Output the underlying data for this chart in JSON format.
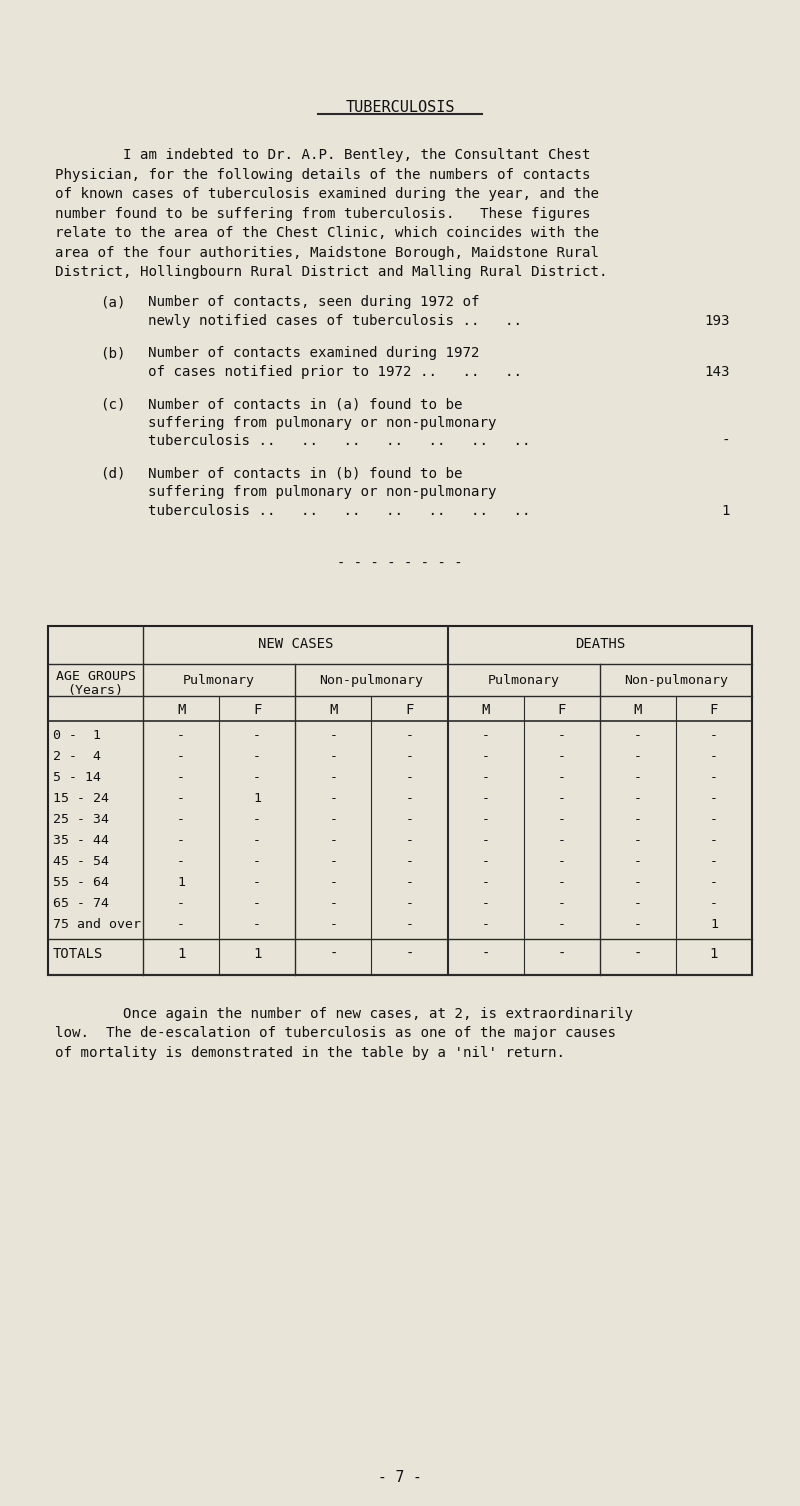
{
  "bg_color": "#e8e4d8",
  "title": "TUBERCULOSIS",
  "intro_line1": "        I am indebted to Dr. A.P. Bentley, the Consultant Chest",
  "intro_lines": [
    "        I am indebted to Dr. A.P. Bentley, the Consultant Chest",
    "Physician, for the following details of the numbers of contacts",
    "of known cases of tuberculosis examined during the year, and the",
    "number found to be suffering from tuberculosis.   These figures",
    "relate to the area of the Chest Clinic, which coincides with the",
    "area of the four authorities, Maidstone Borough, Maidstone Rural",
    "District, Hollingbourn Rural District and Malling Rural District."
  ],
  "items": [
    {
      "label": "(a)",
      "lines": [
        "Number of contacts, seen during 1972 of",
        "newly notified cases of tuberculosis ..   .."
      ],
      "value": "193"
    },
    {
      "label": "(b)",
      "lines": [
        "Number of contacts examined during 1972",
        "of cases notified prior to 1972 ..   ..   .."
      ],
      "value": "143"
    },
    {
      "label": "(c)",
      "lines": [
        "Number of contacts in (a) found to be",
        "suffering from pulmonary or non-pulmonary",
        "tuberculosis ..   ..   ..   ..   ..   ..   .."
      ],
      "value": "-"
    },
    {
      "label": "(d)",
      "lines": [
        "Number of contacts in (b) found to be",
        "suffering from pulmonary or non-pulmonary",
        "tuberculosis ..   ..   ..   ..   ..   ..   .."
      ],
      "value": "1"
    }
  ],
  "separator": "- - - - - - - -",
  "age_groups": [
    "0 -  1",
    "2 -  4",
    "5 - 14",
    "15 - 24",
    "25 - 34",
    "35 - 44",
    "45 - 54",
    "55 - 64",
    "65 - 74",
    "75 and over"
  ],
  "table_data": {
    "nc_pul_M": [
      "-",
      "-",
      "-",
      "-",
      "-",
      "-",
      "-",
      "1",
      "-",
      "-"
    ],
    "nc_pul_F": [
      "-",
      "-",
      "-",
      "1",
      "-",
      "-",
      "-",
      "-",
      "-",
      "-"
    ],
    "nc_np_M": [
      "-",
      "-",
      "-",
      "-",
      "-",
      "-",
      "-",
      "-",
      "-",
      "-"
    ],
    "nc_np_F": [
      "-",
      "-",
      "-",
      "-",
      "-",
      "-",
      "-",
      "-",
      "-",
      "-"
    ],
    "d_pul_M": [
      "-",
      "-",
      "-",
      "-",
      "-",
      "-",
      "-",
      "-",
      "-",
      "-"
    ],
    "d_pul_F": [
      "-",
      "-",
      "-",
      "-",
      "-",
      "-",
      "-",
      "-",
      "-",
      "-"
    ],
    "d_np_M": [
      "-",
      "-",
      "-",
      "-",
      "-",
      "-",
      "-",
      "-",
      "-",
      "-"
    ],
    "d_np_F": [
      "-",
      "-",
      "-",
      "-",
      "-",
      "-",
      "-",
      "-",
      "-",
      "1"
    ]
  },
  "totals": [
    "1",
    "1",
    "-",
    "-",
    "-",
    "-",
    "-",
    "1"
  ],
  "closing_lines": [
    "        Once again the number of new cases, at 2, is extraordinarily",
    "low.  The de-escalation of tuberculosis as one of the major causes",
    "of mortality is demonstrated in the table by a 'nil' return."
  ],
  "page_number": "- 7 -"
}
